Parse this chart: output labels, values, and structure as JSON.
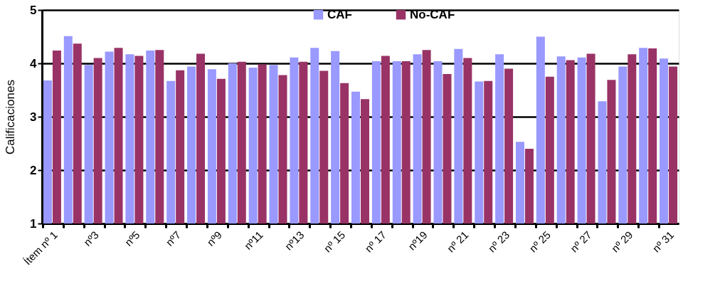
{
  "chart_data": {
    "type": "bar",
    "ylabel": "Calificaciones",
    "categories": [
      "Ítem nº 1",
      null,
      "nº3",
      null,
      "nº5",
      null,
      "nº7",
      null,
      "nº9",
      null,
      "nº11",
      null,
      "nº13",
      null,
      "nº 15",
      null,
      "nº 17",
      null,
      "nº19",
      null,
      "nº 21",
      null,
      "nº 23",
      null,
      "nº 25",
      null,
      "nº 27",
      null,
      "nº 29",
      null,
      "nº 31"
    ],
    "series": [
      {
        "name": "CAF",
        "color": "#9999ff",
        "values": [
          3.68,
          4.51,
          3.97,
          4.22,
          4.17,
          4.24,
          3.67,
          3.94,
          3.89,
          4.0,
          3.92,
          3.97,
          4.11,
          4.29,
          4.23,
          3.47,
          4.04,
          4.04,
          4.17,
          4.04,
          4.27,
          3.66,
          4.17,
          2.53,
          4.5,
          4.13,
          4.11,
          3.29,
          3.94,
          4.29,
          4.09
        ]
      },
      {
        "name": "No-CAF",
        "color": "#993366",
        "values": [
          4.24,
          4.37,
          4.1,
          4.29,
          4.14,
          4.25,
          3.87,
          4.18,
          3.71,
          4.03,
          3.98,
          3.78,
          4.03,
          3.86,
          3.63,
          3.33,
          4.14,
          4.04,
          4.25,
          3.8,
          4.1,
          3.67,
          3.9,
          2.4,
          3.75,
          4.06,
          4.18,
          3.69,
          4.17,
          4.28,
          3.94
        ]
      }
    ],
    "ylim": [
      1,
      5
    ],
    "yticks": [
      1,
      2,
      3,
      4,
      5
    ],
    "grid": "y",
    "legend": "top"
  }
}
